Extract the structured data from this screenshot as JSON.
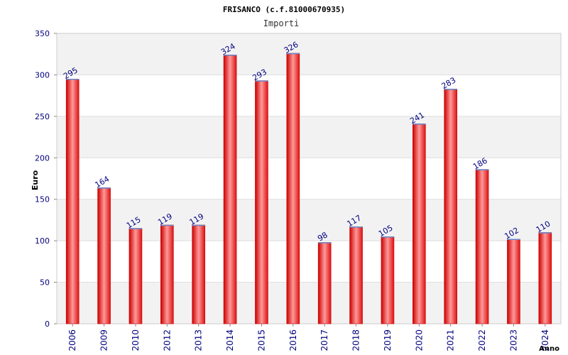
{
  "chart_data": {
    "type": "bar",
    "title": "FRISANCO (c.f.81000670935)",
    "subtitle": "Importi",
    "xlabel": "Anno",
    "ylabel": "Euro",
    "ylim": [
      0,
      350
    ],
    "yticks": [
      0,
      50,
      100,
      150,
      200,
      250,
      300,
      350
    ],
    "grid": true,
    "categories": [
      "2006",
      "2009",
      "2010",
      "2012",
      "2013",
      "2014",
      "2015",
      "2016",
      "2017",
      "2018",
      "2019",
      "2020",
      "2021",
      "2022",
      "2023",
      "2024"
    ],
    "values": [
      295,
      164,
      115,
      119,
      119,
      324,
      293,
      326,
      98,
      117,
      105,
      241,
      283,
      186,
      102,
      110
    ],
    "colors": {
      "bar_edge": "#cc0000",
      "bar_mid": "#ff9999",
      "bar_dark": "#dd1111",
      "bar_top": "#6688cc",
      "band": "#f2f2f2",
      "tick_text": "#000080",
      "value_text": "#000080"
    }
  }
}
